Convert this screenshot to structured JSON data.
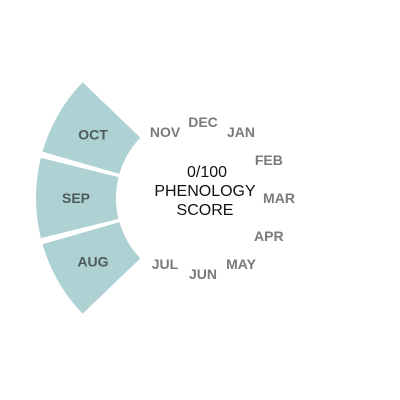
{
  "chart_data": {
    "type": "radial-bar",
    "months": [
      "JAN",
      "FEB",
      "MAR",
      "APR",
      "MAY",
      "JUN",
      "JUL",
      "AUG",
      "SEP",
      "OCT",
      "NOV",
      "DEC"
    ],
    "active_months": [
      "AUG",
      "SEP",
      "OCT"
    ],
    "score": {
      "value": 0,
      "max": 100,
      "text": "0/100"
    },
    "center_title_line1": "PHENOLOGY",
    "center_title_line2": "SCORE"
  },
  "colors": {
    "segment_fill": "#aed2d4",
    "month_label": "#7a7a7a",
    "segment_label": "#4f5a5a",
    "center_text": "#111111"
  }
}
